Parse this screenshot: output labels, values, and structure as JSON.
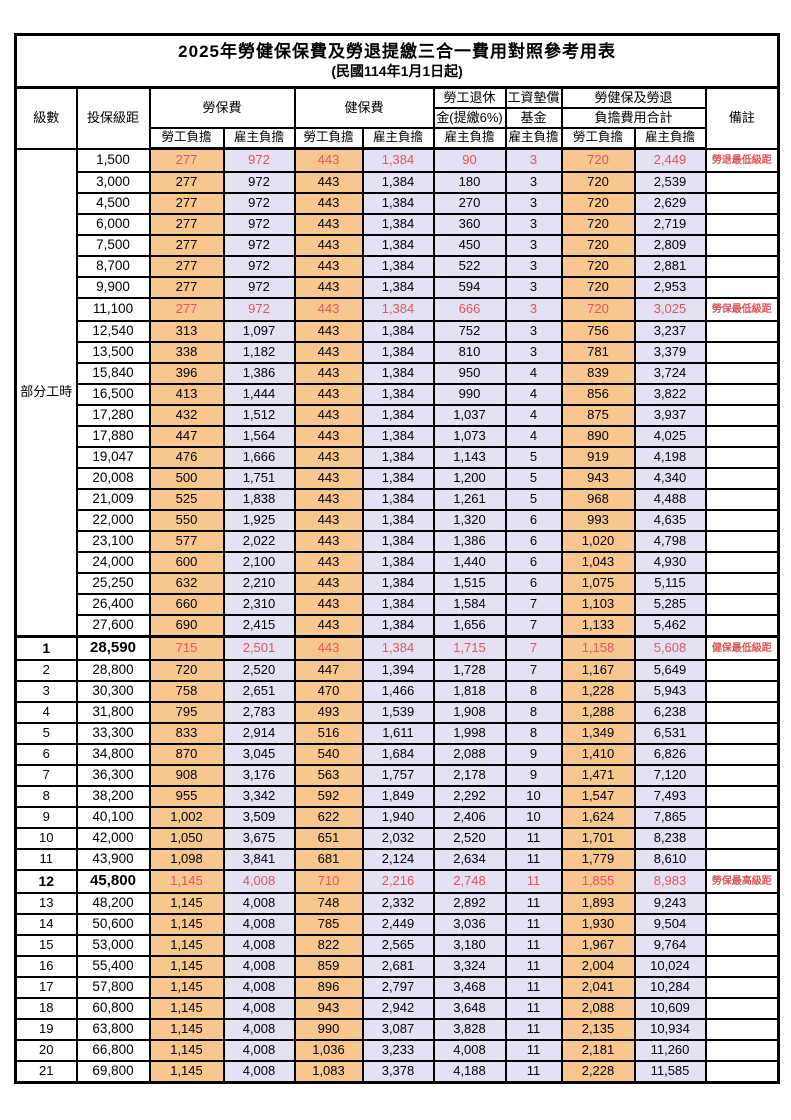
{
  "title": "2025年勞健保保費及勞退提繳三合一費用對照參考用表",
  "subtitle": "(民國114年1月1日起)",
  "colors": {
    "employee_bg": "#f8c78f",
    "employer_bg": "#e3e1f2",
    "highlight_red": "#dd565c",
    "border": "#000000"
  },
  "header": {
    "level": "級數",
    "bracket": "投保級距",
    "labor_ins": "勞保費",
    "health_ins": "健保費",
    "pension_line1": "勞工退休",
    "pension_line2": "金(提繳6%)",
    "fund_line1": "工資墊償",
    "fund_line2": "基金",
    "total_line1": "勞健保及勞退",
    "total_line2": "負擔費用合計",
    "note": "備註",
    "employee": "勞工負擔",
    "employer": "雇主負擔"
  },
  "part_time_label": "部分工時",
  "rows": [
    {
      "level": "",
      "bracket": "1,500",
      "cells": [
        "277",
        "972",
        "443",
        "1,384",
        "90",
        "3",
        "720",
        "2,449"
      ],
      "note": "勞退最低級距",
      "highlight": true,
      "big": false
    },
    {
      "level": "",
      "bracket": "3,000",
      "cells": [
        "277",
        "972",
        "443",
        "1,384",
        "180",
        "3",
        "720",
        "2,539"
      ],
      "note": "",
      "highlight": false,
      "big": false
    },
    {
      "level": "",
      "bracket": "4,500",
      "cells": [
        "277",
        "972",
        "443",
        "1,384",
        "270",
        "3",
        "720",
        "2,629"
      ],
      "note": "",
      "highlight": false,
      "big": false
    },
    {
      "level": "",
      "bracket": "6,000",
      "cells": [
        "277",
        "972",
        "443",
        "1,384",
        "360",
        "3",
        "720",
        "2,719"
      ],
      "note": "",
      "highlight": false,
      "big": false
    },
    {
      "level": "",
      "bracket": "7,500",
      "cells": [
        "277",
        "972",
        "443",
        "1,384",
        "450",
        "3",
        "720",
        "2,809"
      ],
      "note": "",
      "highlight": false,
      "big": false
    },
    {
      "level": "",
      "bracket": "8,700",
      "cells": [
        "277",
        "972",
        "443",
        "1,384",
        "522",
        "3",
        "720",
        "2,881"
      ],
      "note": "",
      "highlight": false,
      "big": false
    },
    {
      "level": "",
      "bracket": "9,900",
      "cells": [
        "277",
        "972",
        "443",
        "1,384",
        "594",
        "3",
        "720",
        "2,953"
      ],
      "note": "",
      "highlight": false,
      "big": false
    },
    {
      "level": "",
      "bracket": "11,100",
      "cells": [
        "277",
        "972",
        "443",
        "1,384",
        "666",
        "3",
        "720",
        "3,025"
      ],
      "note": "勞保最低級距",
      "highlight": true,
      "big": false
    },
    {
      "level": "",
      "bracket": "12,540",
      "cells": [
        "313",
        "1,097",
        "443",
        "1,384",
        "752",
        "3",
        "756",
        "3,237"
      ],
      "note": "",
      "highlight": false,
      "big": false
    },
    {
      "level": "",
      "bracket": "13,500",
      "cells": [
        "338",
        "1,182",
        "443",
        "1,384",
        "810",
        "3",
        "781",
        "3,379"
      ],
      "note": "",
      "highlight": false,
      "big": false
    },
    {
      "level": "",
      "bracket": "15,840",
      "cells": [
        "396",
        "1,386",
        "443",
        "1,384",
        "950",
        "4",
        "839",
        "3,724"
      ],
      "note": "",
      "highlight": false,
      "big": false
    },
    {
      "level": "",
      "bracket": "16,500",
      "cells": [
        "413",
        "1,444",
        "443",
        "1,384",
        "990",
        "4",
        "856",
        "3,822"
      ],
      "note": "",
      "highlight": false,
      "big": false
    },
    {
      "level": "",
      "bracket": "17,280",
      "cells": [
        "432",
        "1,512",
        "443",
        "1,384",
        "1,037",
        "4",
        "875",
        "3,937"
      ],
      "note": "",
      "highlight": false,
      "big": false
    },
    {
      "level": "",
      "bracket": "17,880",
      "cells": [
        "447",
        "1,564",
        "443",
        "1,384",
        "1,073",
        "4",
        "890",
        "4,025"
      ],
      "note": "",
      "highlight": false,
      "big": false
    },
    {
      "level": "",
      "bracket": "19,047",
      "cells": [
        "476",
        "1,666",
        "443",
        "1,384",
        "1,143",
        "5",
        "919",
        "4,198"
      ],
      "note": "",
      "highlight": false,
      "big": false
    },
    {
      "level": "",
      "bracket": "20,008",
      "cells": [
        "500",
        "1,751",
        "443",
        "1,384",
        "1,200",
        "5",
        "943",
        "4,340"
      ],
      "note": "",
      "highlight": false,
      "big": false
    },
    {
      "level": "",
      "bracket": "21,009",
      "cells": [
        "525",
        "1,838",
        "443",
        "1,384",
        "1,261",
        "5",
        "968",
        "4,488"
      ],
      "note": "",
      "highlight": false,
      "big": false
    },
    {
      "level": "",
      "bracket": "22,000",
      "cells": [
        "550",
        "1,925",
        "443",
        "1,384",
        "1,320",
        "6",
        "993",
        "4,635"
      ],
      "note": "",
      "highlight": false,
      "big": false
    },
    {
      "level": "",
      "bracket": "23,100",
      "cells": [
        "577",
        "2,022",
        "443",
        "1,384",
        "1,386",
        "6",
        "1,020",
        "4,798"
      ],
      "note": "",
      "highlight": false,
      "big": false
    },
    {
      "level": "",
      "bracket": "24,000",
      "cells": [
        "600",
        "2,100",
        "443",
        "1,384",
        "1,440",
        "6",
        "1,043",
        "4,930"
      ],
      "note": "",
      "highlight": false,
      "big": false
    },
    {
      "level": "",
      "bracket": "25,250",
      "cells": [
        "632",
        "2,210",
        "443",
        "1,384",
        "1,515",
        "6",
        "1,075",
        "5,115"
      ],
      "note": "",
      "highlight": false,
      "big": false
    },
    {
      "level": "",
      "bracket": "26,400",
      "cells": [
        "660",
        "2,310",
        "443",
        "1,384",
        "1,584",
        "7",
        "1,103",
        "5,285"
      ],
      "note": "",
      "highlight": false,
      "big": false
    },
    {
      "level": "",
      "bracket": "27,600",
      "cells": [
        "690",
        "2,415",
        "443",
        "1,384",
        "1,656",
        "7",
        "1,133",
        "5,462"
      ],
      "note": "",
      "highlight": false,
      "big": false
    },
    {
      "level": "1",
      "bracket": "28,590",
      "cells": [
        "715",
        "2,501",
        "443",
        "1,384",
        "1,715",
        "7",
        "1,158",
        "5,608"
      ],
      "note": "健保最低級距",
      "highlight": true,
      "big": true,
      "section_start": true
    },
    {
      "level": "2",
      "bracket": "28,800",
      "cells": [
        "720",
        "2,520",
        "447",
        "1,394",
        "1,728",
        "7",
        "1,167",
        "5,649"
      ],
      "note": "",
      "highlight": false,
      "big": false
    },
    {
      "level": "3",
      "bracket": "30,300",
      "cells": [
        "758",
        "2,651",
        "470",
        "1,466",
        "1,818",
        "8",
        "1,228",
        "5,943"
      ],
      "note": "",
      "highlight": false,
      "big": false
    },
    {
      "level": "4",
      "bracket": "31,800",
      "cells": [
        "795",
        "2,783",
        "493",
        "1,539",
        "1,908",
        "8",
        "1,288",
        "6,238"
      ],
      "note": "",
      "highlight": false,
      "big": false
    },
    {
      "level": "5",
      "bracket": "33,300",
      "cells": [
        "833",
        "2,914",
        "516",
        "1,611",
        "1,998",
        "8",
        "1,349",
        "6,531"
      ],
      "note": "",
      "highlight": false,
      "big": false
    },
    {
      "level": "6",
      "bracket": "34,800",
      "cells": [
        "870",
        "3,045",
        "540",
        "1,684",
        "2,088",
        "9",
        "1,410",
        "6,826"
      ],
      "note": "",
      "highlight": false,
      "big": false
    },
    {
      "level": "7",
      "bracket": "36,300",
      "cells": [
        "908",
        "3,176",
        "563",
        "1,757",
        "2,178",
        "9",
        "1,471",
        "7,120"
      ],
      "note": "",
      "highlight": false,
      "big": false
    },
    {
      "level": "8",
      "bracket": "38,200",
      "cells": [
        "955",
        "3,342",
        "592",
        "1,849",
        "2,292",
        "10",
        "1,547",
        "7,493"
      ],
      "note": "",
      "highlight": false,
      "big": false
    },
    {
      "level": "9",
      "bracket": "40,100",
      "cells": [
        "1,002",
        "3,509",
        "622",
        "1,940",
        "2,406",
        "10",
        "1,624",
        "7,865"
      ],
      "note": "",
      "highlight": false,
      "big": false
    },
    {
      "level": "10",
      "bracket": "42,000",
      "cells": [
        "1,050",
        "3,675",
        "651",
        "2,032",
        "2,520",
        "11",
        "1,701",
        "8,238"
      ],
      "note": "",
      "highlight": false,
      "big": false
    },
    {
      "level": "11",
      "bracket": "43,900",
      "cells": [
        "1,098",
        "3,841",
        "681",
        "2,124",
        "2,634",
        "11",
        "1,779",
        "8,610"
      ],
      "note": "",
      "highlight": false,
      "big": false
    },
    {
      "level": "12",
      "bracket": "45,800",
      "cells": [
        "1,145",
        "4,008",
        "710",
        "2,216",
        "2,748",
        "11",
        "1,855",
        "8,983"
      ],
      "note": "勞保最高級距",
      "highlight": true,
      "big": true
    },
    {
      "level": "13",
      "bracket": "48,200",
      "cells": [
        "1,145",
        "4,008",
        "748",
        "2,332",
        "2,892",
        "11",
        "1,893",
        "9,243"
      ],
      "note": "",
      "highlight": false,
      "big": false
    },
    {
      "level": "14",
      "bracket": "50,600",
      "cells": [
        "1,145",
        "4,008",
        "785",
        "2,449",
        "3,036",
        "11",
        "1,930",
        "9,504"
      ],
      "note": "",
      "highlight": false,
      "big": false
    },
    {
      "level": "15",
      "bracket": "53,000",
      "cells": [
        "1,145",
        "4,008",
        "822",
        "2,565",
        "3,180",
        "11",
        "1,967",
        "9,764"
      ],
      "note": "",
      "highlight": false,
      "big": false
    },
    {
      "level": "16",
      "bracket": "55,400",
      "cells": [
        "1,145",
        "4,008",
        "859",
        "2,681",
        "3,324",
        "11",
        "2,004",
        "10,024"
      ],
      "note": "",
      "highlight": false,
      "big": false
    },
    {
      "level": "17",
      "bracket": "57,800",
      "cells": [
        "1,145",
        "4,008",
        "896",
        "2,797",
        "3,468",
        "11",
        "2,041",
        "10,284"
      ],
      "note": "",
      "highlight": false,
      "big": false
    },
    {
      "level": "18",
      "bracket": "60,800",
      "cells": [
        "1,145",
        "4,008",
        "943",
        "2,942",
        "3,648",
        "11",
        "2,088",
        "10,609"
      ],
      "note": "",
      "highlight": false,
      "big": false
    },
    {
      "level": "19",
      "bracket": "63,800",
      "cells": [
        "1,145",
        "4,008",
        "990",
        "3,087",
        "3,828",
        "11",
        "2,135",
        "10,934"
      ],
      "note": "",
      "highlight": false,
      "big": false
    },
    {
      "level": "20",
      "bracket": "66,800",
      "cells": [
        "1,145",
        "4,008",
        "1,036",
        "3,233",
        "4,008",
        "11",
        "2,181",
        "11,260"
      ],
      "note": "",
      "highlight": false,
      "big": false
    },
    {
      "level": "21",
      "bracket": "69,800",
      "cells": [
        "1,145",
        "4,008",
        "1,083",
        "3,378",
        "4,188",
        "11",
        "2,228",
        "11,585"
      ],
      "note": "",
      "highlight": false,
      "big": false
    }
  ]
}
